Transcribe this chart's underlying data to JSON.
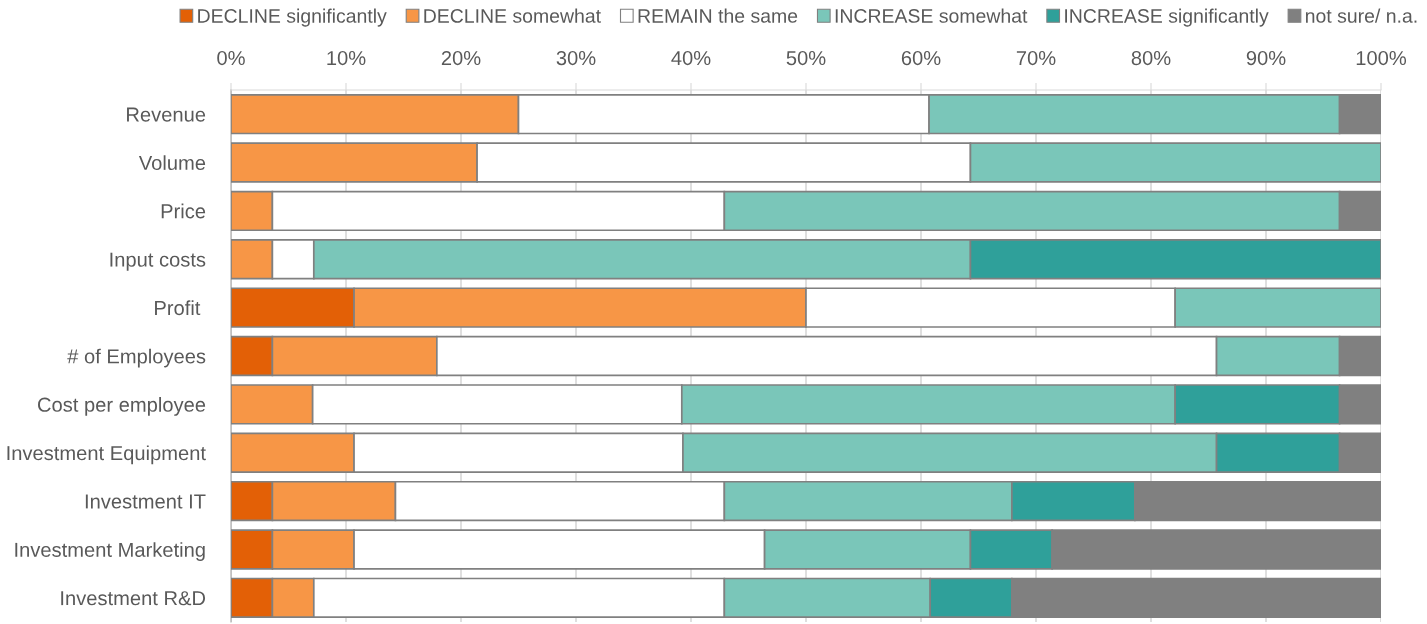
{
  "chart_data": {
    "type": "bar",
    "orientation": "horizontal",
    "stacked": true,
    "categories": [
      "Revenue",
      "Volume",
      "Price",
      "Input costs",
      "Profit ",
      "# of Employees",
      "Cost per employee",
      "Investment Equipment",
      "Investment IT",
      "Investment Marketing",
      "Investment R&D"
    ],
    "series": [
      {
        "name": "DECLINE significantly",
        "color": "#e36006",
        "values": [
          0,
          0,
          0,
          0,
          10.7,
          3.6,
          0,
          0,
          3.6,
          3.6,
          3.6
        ]
      },
      {
        "name": "DECLINE somewhat",
        "color": "#f79646",
        "values": [
          25.0,
          21.4,
          3.6,
          3.6,
          39.3,
          14.3,
          7.1,
          10.7,
          10.7,
          7.1,
          3.6
        ]
      },
      {
        "name": "REMAIN the same",
        "color": "#ffffff",
        "values": [
          35.7,
          42.9,
          39.3,
          3.6,
          32.1,
          67.8,
          32.1,
          28.6,
          28.6,
          35.7,
          35.7
        ]
      },
      {
        "name": "INCREASE somewhat",
        "color": "#7ac6b9",
        "values": [
          35.7,
          35.7,
          53.5,
          57.1,
          17.9,
          10.7,
          42.9,
          46.4,
          25.0,
          17.9,
          17.9
        ]
      },
      {
        "name": "INCREASE significantly",
        "color": "#2fa09a",
        "values": [
          0,
          0,
          0,
          35.7,
          0,
          0,
          14.3,
          10.7,
          10.7,
          7.1,
          7.1
        ]
      },
      {
        "name": "not sure/ n.a.",
        "color": "#808080",
        "values": [
          3.6,
          0,
          3.6,
          0,
          0,
          3.6,
          3.6,
          3.6,
          21.4,
          28.6,
          32.1
        ]
      }
    ],
    "xlim": [
      0,
      100
    ],
    "xticks": [
      {
        "value": 0,
        "label": "0%"
      },
      {
        "value": 10,
        "label": "10%"
      },
      {
        "value": 20,
        "label": "20%"
      },
      {
        "value": 30,
        "label": "30%"
      },
      {
        "value": 40,
        "label": "40%"
      },
      {
        "value": 50,
        "label": "50%"
      },
      {
        "value": 60,
        "label": "60%"
      },
      {
        "value": 70,
        "label": "70%"
      },
      {
        "value": 80,
        "label": "80%"
      },
      {
        "value": 90,
        "label": "90%"
      },
      {
        "value": 100,
        "label": "100%"
      }
    ],
    "grid": "x",
    "legend": "top"
  }
}
